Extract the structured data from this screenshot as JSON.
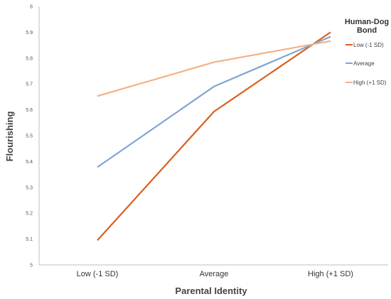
{
  "chart_data": {
    "type": "line",
    "title": "",
    "xlabel": "Parental Identity",
    "ylabel": "Flourishing",
    "categories": [
      "Low (-1 SD)",
      "Average",
      "High (+1 SD)"
    ],
    "ylim": [
      5,
      6
    ],
    "yticks": [
      "5",
      "5.1",
      "5.2",
      "5.3",
      "5.4",
      "5.5",
      "5.6",
      "5.7",
      "5.8",
      "5.9",
      "6"
    ],
    "grid": false,
    "legend": {
      "title_lines": [
        "Human-Dog",
        "Bond"
      ],
      "placement": "right"
    },
    "series": [
      {
        "name": "Low (-1 SD)",
        "color": "#d9601f",
        "values": [
          5.095,
          5.593,
          5.9
        ]
      },
      {
        "name": "Average",
        "color": "#7ea6d3",
        "values": [
          5.378,
          5.69,
          5.883
        ]
      },
      {
        "name": "High (+1 SD)",
        "color": "#f4b183",
        "values": [
          5.653,
          5.784,
          5.866
        ]
      }
    ]
  }
}
